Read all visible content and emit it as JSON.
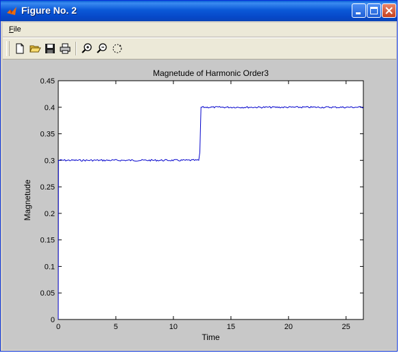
{
  "window": {
    "title": "Figure No. 2"
  },
  "menubar": {
    "file_first": "F",
    "file_rest": "ile"
  },
  "toolbar": {
    "icons": [
      "new-file-icon",
      "open-folder-icon",
      "save-icon",
      "print-icon",
      "zoom-in-icon",
      "zoom-out-icon",
      "rotate-icon"
    ]
  },
  "colors": {
    "titlebar": "#0b59d8",
    "line": "#0000cc",
    "figure_bg": "#c8c8c8"
  },
  "chart_data": {
    "type": "line",
    "title": "Magnetude of Harmonic Order3",
    "xlabel": "Time",
    "ylabel": "Magnetude",
    "xlim": [
      0,
      26.5
    ],
    "ylim": [
      0,
      0.45
    ],
    "xticks": [
      "0",
      "5",
      "10",
      "15",
      "20",
      "25"
    ],
    "yticks": [
      "0",
      "0.05",
      "0.1",
      "0.15",
      "0.2",
      "0.25",
      "0.3",
      "0.35",
      "0.4",
      "0.45"
    ],
    "grid": false,
    "series": [
      {
        "x": [
          0,
          0.02,
          12.2,
          12.3,
          12.4,
          26.5
        ],
        "y": [
          0,
          0.3,
          0.3,
          0.315,
          0.4,
          0.4
        ]
      }
    ]
  }
}
